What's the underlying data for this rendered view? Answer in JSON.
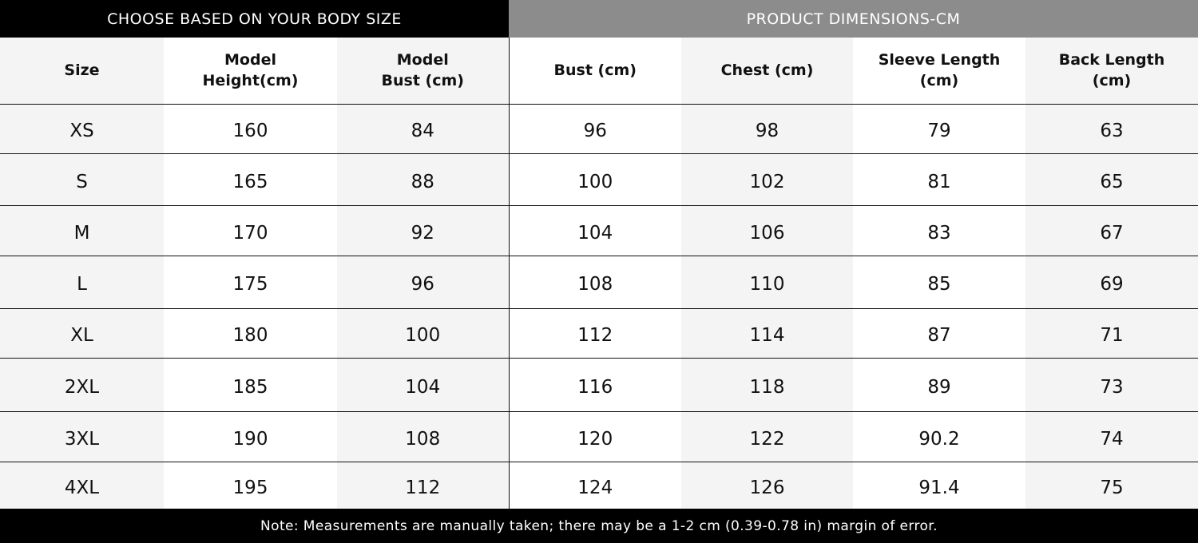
{
  "header": {
    "left": "CHOOSE BASED ON YOUR BODY SIZE",
    "right": "PRODUCT DIMENSIONS-CM"
  },
  "columns": [
    "Size",
    "Model\nHeight(cm)",
    "Model\nBust (cm)",
    "Bust (cm)",
    "Chest (cm)",
    "Sleeve Length\n(cm)",
    "Back Length\n(cm)"
  ],
  "rows": [
    [
      "XS",
      "160",
      "84",
      "96",
      "98",
      "79",
      "63"
    ],
    [
      "S",
      "165",
      "88",
      "100",
      "102",
      "81",
      "65"
    ],
    [
      "M",
      "170",
      "92",
      "104",
      "106",
      "83",
      "67"
    ],
    [
      "L",
      "175",
      "96",
      "108",
      "110",
      "85",
      "69"
    ],
    [
      "XL",
      "180",
      "100",
      "112",
      "114",
      "87",
      "71"
    ],
    [
      "2XL",
      "185",
      "104",
      "116",
      "118",
      "89",
      "73"
    ],
    [
      "3XL",
      "190",
      "108",
      "120",
      "122",
      "90.2",
      "74"
    ],
    [
      "4XL",
      "195",
      "112",
      "124",
      "126",
      "91.4",
      "75"
    ]
  ],
  "note": "Note: Measurements are manually taken; there may be a 1-2 cm (0.39-0.78 in) margin of error.",
  "colors": {
    "header_left": "#000000",
    "header_right": "#8c8c8c",
    "band": "#f4f4f4"
  }
}
